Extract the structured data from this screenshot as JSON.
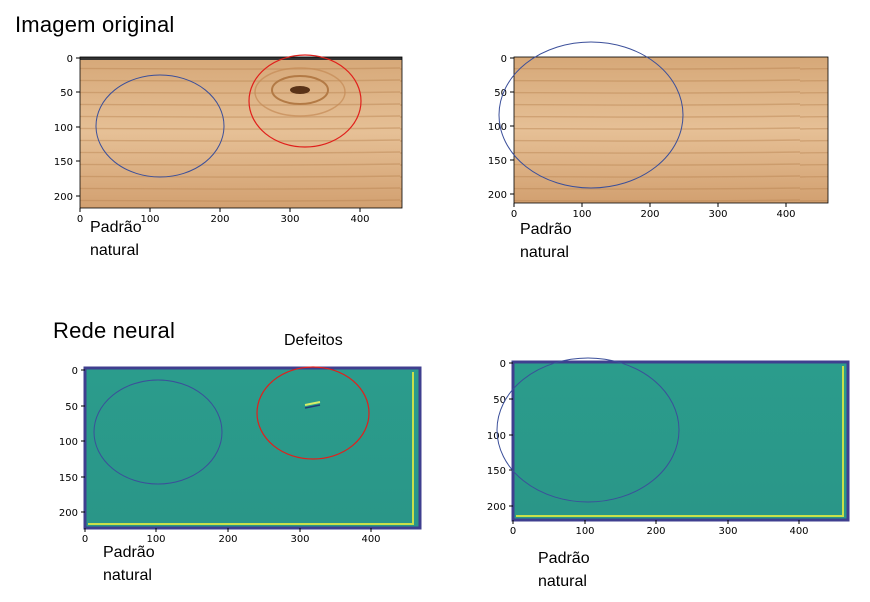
{
  "headings": {
    "original": "Imagem original",
    "neural": "Rede neural"
  },
  "annotations": {
    "defects": "Defeitos"
  },
  "panels": [
    {
      "label_line1": "Padrão",
      "label_line2": "natural",
      "x_ticks": [
        "0",
        "100",
        "200",
        "300",
        "400"
      ],
      "y_ticks": [
        "0",
        "50",
        "100",
        "150",
        "200"
      ],
      "ellipses": [
        "blue",
        "red"
      ]
    },
    {
      "label_line1": "Padrão",
      "label_line2": "natural",
      "x_ticks": [
        "0",
        "100",
        "200",
        "300",
        "400"
      ],
      "y_ticks": [
        "0",
        "50",
        "100",
        "150",
        "200"
      ],
      "ellipses": [
        "blue"
      ]
    },
    {
      "label_line1": "Padrão",
      "label_line2": "natural",
      "x_ticks": [
        "0",
        "100",
        "200",
        "300",
        "400"
      ],
      "y_ticks": [
        "0",
        "50",
        "100",
        "150",
        "200"
      ],
      "ellipses": [
        "blue",
        "red"
      ]
    },
    {
      "label_line1": "Padrão",
      "label_line2": "natural",
      "x_ticks": [
        "0",
        "100",
        "200",
        "300",
        "400"
      ],
      "y_ticks": [
        "0",
        "50",
        "100",
        "150",
        "200"
      ],
      "ellipses": [
        "blue"
      ]
    }
  ],
  "colors": {
    "wood_light": "#e2b98c",
    "wood_dark": "#c9925d",
    "neural_fill": "#2a9a8a",
    "neural_border": "#3f3f8f",
    "neural_edge_yellow": "#c8e04a",
    "ellipse_blue": "#3b4f9a",
    "ellipse_red": "#e0201c"
  }
}
